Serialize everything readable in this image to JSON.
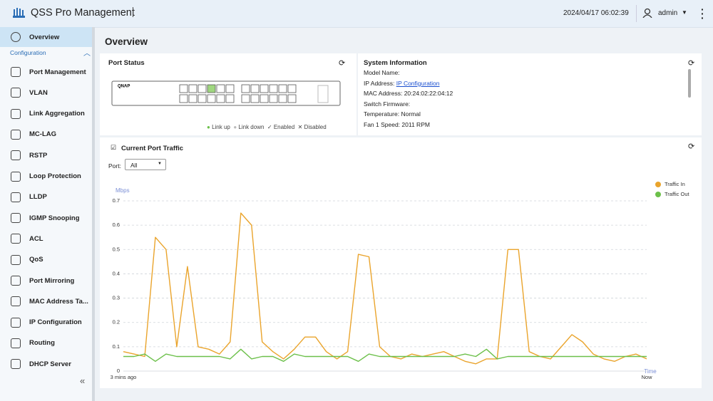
{
  "header": {
    "title": "QSS Pro Management",
    "datetime": "2024/04/17 06:02:39",
    "user": "admin"
  },
  "sidebar": {
    "active": "Overview",
    "section": "Configuration",
    "items": [
      "Port Management",
      "VLAN",
      "Link Aggregation",
      "MC-LAG",
      "RSTP",
      "Loop Protection",
      "LLDP",
      "IGMP Snooping",
      "ACL",
      "QoS",
      "Port Mirroring",
      "MAC Address Ta...",
      "IP Configuration",
      "Routing",
      "DHCP Server"
    ]
  },
  "page_title": "Overview",
  "port_status": {
    "title": "Port Status",
    "brand": "QNAP",
    "legend": [
      "Link up",
      "Link down",
      "Enabled",
      "Disabled"
    ]
  },
  "system_info": {
    "title": "System Information",
    "rows": [
      {
        "label": "Model Name:"
      },
      {
        "label": "IP Address:",
        "link": "IP Configuration"
      },
      {
        "label": "MAC Address:",
        "value": "20:24:02:22:04:12"
      },
      {
        "label": "Switch Firmware:"
      },
      {
        "label": "Temperature:",
        "value": "Normal"
      },
      {
        "label": "Fan 1 Speed:",
        "value": "2011 RPM"
      }
    ]
  },
  "chart_data": {
    "type": "line",
    "title": "Current Port Traffic",
    "port_label": "Port:",
    "port_select": "All",
    "y_label": "Mbps",
    "x_label": "Time",
    "categories": [
      "3 mins ago",
      null,
      null,
      null,
      null,
      null,
      null,
      null,
      null,
      null,
      null,
      null,
      null,
      null,
      null,
      null,
      null,
      null,
      null,
      null,
      null,
      null,
      null,
      null,
      null,
      null,
      null,
      null,
      null,
      null,
      null,
      null,
      null,
      null,
      null,
      null,
      null,
      null,
      null,
      null,
      null,
      null,
      null,
      null,
      null,
      null,
      null,
      null,
      null,
      "Now"
    ],
    "ylim": [
      0,
      0.7
    ],
    "yticks": [
      0,
      0.1,
      0.2,
      0.3,
      0.4,
      0.5,
      0.6,
      0.7
    ],
    "grid": true,
    "legend": "top-right",
    "series": [
      {
        "name": "Traffic In",
        "color": "#eaa42c",
        "values": [
          0.08,
          0.07,
          0.06,
          0.55,
          0.5,
          0.1,
          0.43,
          0.1,
          0.09,
          0.07,
          0.12,
          0.65,
          0.6,
          0.12,
          0.08,
          0.05,
          0.09,
          0.14,
          0.14,
          0.08,
          0.05,
          0.08,
          0.48,
          0.47,
          0.1,
          0.06,
          0.05,
          0.07,
          0.06,
          0.07,
          0.08,
          0.06,
          0.04,
          0.03,
          0.05,
          0.05,
          0.5,
          0.5,
          0.08,
          0.06,
          0.05,
          0.1,
          0.15,
          0.12,
          0.07,
          0.05,
          0.04,
          0.06,
          0.07,
          0.05
        ]
      },
      {
        "name": "Traffic Out",
        "color": "#6cc04a",
        "values": [
          0.06,
          0.06,
          0.07,
          0.04,
          0.07,
          0.06,
          0.06,
          0.06,
          0.06,
          0.06,
          0.05,
          0.09,
          0.05,
          0.06,
          0.06,
          0.04,
          0.07,
          0.06,
          0.06,
          0.06,
          0.06,
          0.06,
          0.04,
          0.07,
          0.06,
          0.06,
          0.06,
          0.06,
          0.06,
          0.06,
          0.06,
          0.06,
          0.07,
          0.06,
          0.09,
          0.05,
          0.06,
          0.06,
          0.06,
          0.06,
          0.06,
          0.06,
          0.06,
          0.06,
          0.06,
          0.06,
          0.06,
          0.06,
          0.06,
          0.06
        ]
      }
    ]
  }
}
